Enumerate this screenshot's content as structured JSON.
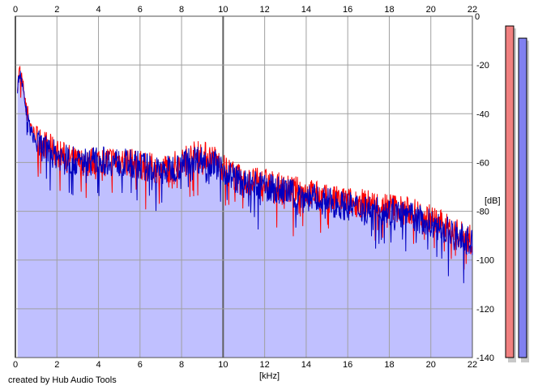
{
  "chart_data": {
    "type": "area",
    "xlabel": "[kHz]",
    "ylabel": "[dB]",
    "xlim": [
      0,
      22
    ],
    "ylim": [
      -140,
      0
    ],
    "x_ticks": [
      "0",
      "2",
      "4",
      "6",
      "8",
      "10",
      "12",
      "14",
      "16",
      "18",
      "20",
      "22"
    ],
    "y_ticks": [
      "0",
      "-20",
      "-40",
      "-60",
      "-80",
      "-100",
      "-120",
      "-140"
    ],
    "grid": true,
    "series": [
      {
        "color": "#ff0000",
        "x": [
          0.1,
          0.2,
          0.3,
          0.5,
          0.7,
          1.0,
          1.5,
          2.0,
          3.0,
          4.0,
          5.0,
          6.0,
          7.0,
          8.0,
          8.5,
          9.0,
          9.5,
          10.0,
          11.0,
          12.0,
          13.0,
          14.0,
          15.0,
          16.0,
          17.0,
          18.0,
          19.0,
          20.0,
          21.0,
          22.0
        ],
        "y": [
          -28,
          -22,
          -25,
          -35,
          -44,
          -50,
          -53,
          -56,
          -60,
          -59,
          -59,
          -61,
          -63,
          -60,
          -57,
          -57,
          -58,
          -62,
          -68,
          -68,
          -71,
          -72,
          -75,
          -76,
          -77,
          -78,
          -80,
          -83,
          -88,
          -92
        ]
      },
      {
        "color": "#0000c0",
        "x": [
          0.1,
          0.2,
          0.3,
          0.5,
          0.7,
          1.0,
          1.5,
          2.0,
          3.0,
          4.0,
          5.0,
          6.0,
          7.0,
          8.0,
          8.5,
          9.0,
          9.5,
          10.0,
          11.0,
          12.0,
          13.0,
          14.0,
          15.0,
          16.0,
          17.0,
          18.0,
          19.0,
          20.0,
          21.0,
          22.0
        ],
        "y": [
          -30,
          -23,
          -27,
          -38,
          -46,
          -52,
          -55,
          -57,
          -60,
          -59,
          -60,
          -61,
          -64,
          -61,
          -58,
          -59,
          -60,
          -63,
          -69,
          -70,
          -72,
          -74,
          -76,
          -78,
          -79,
          -80,
          -82,
          -85,
          -89,
          -93
        ]
      }
    ],
    "fill_color": "#c0c0ff",
    "level_meters": [
      {
        "color": "#f08080",
        "level_db": -4
      },
      {
        "color": "#8080f0",
        "level_db": -9
      }
    ]
  },
  "footer": {
    "credit": "created by Hub Audio Tools"
  }
}
